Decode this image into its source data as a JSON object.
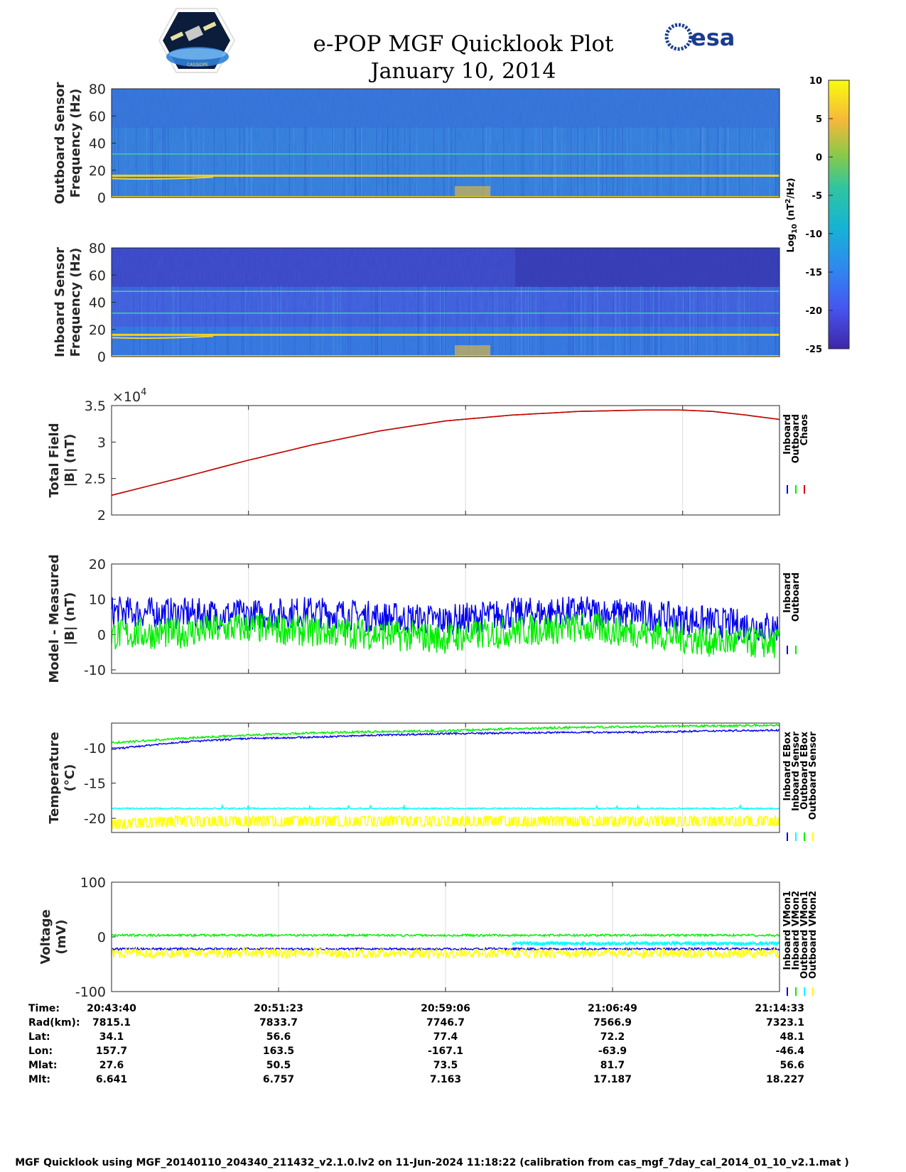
{
  "header": {
    "title": "e-POP MGF Quicklook Plot",
    "date": "January 10, 2014",
    "logo_right_text": "esa",
    "logo_left_text": "CASSIOPE"
  },
  "colors": {
    "inboard": "#0000ee",
    "outboard": "#00ee00",
    "chaos": "#d00000",
    "inboard_sensor": "#00ffff",
    "outboard_sensor": "#ffff00",
    "grid": "#dcdcdc"
  },
  "colorbar": {
    "label": "Log10 (nT2/Hz)",
    "ticks": [
      "10",
      "5",
      "0",
      "-5",
      "-10",
      "-15",
      "-20",
      "-25"
    ],
    "range": [
      -25,
      10
    ]
  },
  "chart_data": [
    {
      "type": "heatmap",
      "ylabel_lines": [
        "Outboard Sensor",
        "Frequency (Hz)"
      ],
      "yticks": [
        "80",
        "60",
        "40",
        "20",
        "0"
      ],
      "ylim": [
        0,
        80
      ],
      "lines_hz": [
        32,
        16
      ]
    },
    {
      "type": "heatmap",
      "ylabel_lines": [
        "Inboard Sensor",
        "Frequency (Hz)"
      ],
      "yticks": [
        "80",
        "60",
        "40",
        "20",
        "0"
      ],
      "ylim": [
        0,
        80
      ],
      "lines_hz": [
        48,
        32,
        16
      ]
    },
    {
      "type": "line",
      "ylabel_lines": [
        "Total Field",
        "|B| (nT)"
      ],
      "exponent_label": "×10",
      "exponent_power": "4",
      "yticks": [
        "3.5",
        "3",
        "2.5",
        "2"
      ],
      "ylim": [
        2.0,
        3.5
      ],
      "legend": [
        "Inboard",
        "Outboard",
        "Chaos"
      ],
      "series": [
        {
          "name": "Inboard",
          "x": [
            0,
            0.1,
            0.2,
            0.3,
            0.4,
            0.5,
            0.6,
            0.7,
            0.8,
            0.85,
            0.9,
            0.95,
            1.0
          ],
          "values": [
            2.27,
            2.5,
            2.74,
            2.96,
            3.15,
            3.29,
            3.37,
            3.42,
            3.44,
            3.44,
            3.42,
            3.37,
            3.31
          ]
        },
        {
          "name": "Outboard",
          "x": [
            0,
            0.1,
            0.2,
            0.3,
            0.4,
            0.5,
            0.6,
            0.7,
            0.8,
            0.85,
            0.9,
            0.95,
            1.0
          ],
          "values": [
            2.27,
            2.5,
            2.74,
            2.96,
            3.15,
            3.29,
            3.37,
            3.42,
            3.44,
            3.44,
            3.42,
            3.37,
            3.31
          ]
        },
        {
          "name": "Chaos",
          "x": [
            0,
            0.1,
            0.2,
            0.3,
            0.4,
            0.5,
            0.6,
            0.7,
            0.8,
            0.85,
            0.9,
            0.95,
            1.0
          ],
          "values": [
            2.27,
            2.5,
            2.74,
            2.96,
            3.15,
            3.29,
            3.37,
            3.42,
            3.44,
            3.44,
            3.42,
            3.37,
            3.31
          ]
        }
      ]
    },
    {
      "type": "line",
      "ylabel_lines": [
        "Model - Measured",
        "|B| (nT)"
      ],
      "yticks": [
        "20",
        "10",
        "0",
        "-10"
      ],
      "ylim": [
        -11,
        20
      ],
      "legend": [
        "Inboard",
        "Outboard"
      ],
      "series": [
        {
          "name": "Inboard",
          "x": [
            0,
            0.1,
            0.2,
            0.3,
            0.4,
            0.5,
            0.6,
            0.7,
            0.8,
            0.9,
            1.0
          ],
          "values": [
            6.5,
            6,
            5.5,
            6.5,
            5,
            4,
            6,
            6.5,
            5.5,
            3.5,
            2
          ]
        },
        {
          "name": "Outboard",
          "x": [
            0,
            0.1,
            0.2,
            0.3,
            0.4,
            0.5,
            0.6,
            0.7,
            0.8,
            0.9,
            1.0
          ],
          "values": [
            0,
            0.5,
            2,
            1,
            0,
            -1,
            1,
            2,
            0.5,
            -2,
            -2.5
          ]
        }
      ]
    },
    {
      "type": "line",
      "ylabel_lines": [
        "Temperature",
        "(°C)"
      ],
      "yticks": [
        "-10",
        "-15",
        "-20"
      ],
      "ylim": [
        -22,
        -6.5
      ],
      "legend": [
        "Inboard EBox",
        "Inboard Sensor",
        "Outboard EBox",
        "Outboard Sensor"
      ],
      "series": [
        {
          "name": "Inboard EBox",
          "x": [
            0,
            0.1,
            0.2,
            0.3,
            0.4,
            0.5,
            0.6,
            0.7,
            0.8,
            0.9,
            1.0
          ],
          "values": [
            -10.2,
            -9.2,
            -8.7,
            -8.5,
            -8.2,
            -8,
            -7.9,
            -7.8,
            -7.8,
            -7.6,
            -7.5
          ]
        },
        {
          "name": "Inboard Sensor",
          "x": [
            0,
            0.25,
            0.5,
            0.75,
            1.0
          ],
          "values": [
            -18.6,
            -18.6,
            -18.6,
            -18.6,
            -18.6
          ]
        },
        {
          "name": "Outboard EBox",
          "x": [
            0,
            0.1,
            0.2,
            0.3,
            0.4,
            0.5,
            0.6,
            0.7,
            0.8,
            0.9,
            1.0
          ],
          "values": [
            -9.3,
            -8.7,
            -8.2,
            -7.9,
            -7.7,
            -7.6,
            -7.3,
            -7.1,
            -7,
            -6.9,
            -6.8
          ]
        },
        {
          "name": "Outboard Sensor",
          "x": [
            0,
            0.1,
            0.3,
            0.5,
            0.7,
            0.9,
            1.0
          ],
          "values": [
            -21.5,
            -21,
            -21,
            -21,
            -21,
            -21,
            -21
          ]
        }
      ]
    },
    {
      "type": "line",
      "ylabel_lines": [
        "Voltage",
        "(mV)"
      ],
      "yticks": [
        "100",
        "0",
        "-100"
      ],
      "ylim": [
        -100,
        100
      ],
      "legend": [
        "Inboard VMon1",
        "Inboard VMon2",
        "Outboard VMon1",
        "Outboard VMon2"
      ],
      "series": [
        {
          "name": "Inboard VMon1",
          "x": [
            0,
            0.02,
            1.0
          ],
          "values": [
            -22,
            -22,
            -22
          ]
        },
        {
          "name": "Inboard VMon2",
          "x": [
            0,
            0.02,
            1.0
          ],
          "values": [
            3,
            3,
            3
          ]
        },
        {
          "name": "Outboard VMon1",
          "x": [
            0.6,
            1.0
          ],
          "values": [
            -12,
            -12
          ]
        },
        {
          "name": "Outboard VMon2",
          "x": [
            0,
            0.02,
            1.0
          ],
          "values": [
            -30,
            -30,
            -30
          ]
        }
      ]
    }
  ],
  "ephemeris": {
    "labels": [
      "Time:",
      "Rad(km):",
      "Lat:",
      "Lon:",
      "Mlat:",
      "Mlt:"
    ],
    "columns": [
      [
        "20:43:40",
        "7815.1",
        "34.1",
        "157.7",
        "27.6",
        "6.641"
      ],
      [
        "20:51:23",
        "7833.7",
        "56.6",
        "163.5",
        "50.5",
        "6.757"
      ],
      [
        "20:59:06",
        "7746.7",
        "77.4",
        "-167.1",
        "73.5",
        "7.163"
      ],
      [
        "21:06:49",
        "7566.9",
        "72.2",
        "-63.9",
        "81.7",
        "17.187"
      ],
      [
        "21:14:33",
        "7323.1",
        "48.1",
        "-46.4",
        "56.6",
        "18.227"
      ]
    ]
  },
  "footer": {
    "text": "MGF Quicklook using MGF_20140110_204340_211432_v2.1.0.lv2 on 11-Jun-2024 11:18:22 (calibration from cas_mgf_7day_cal_2014_01_10_v2.1.mat )"
  }
}
